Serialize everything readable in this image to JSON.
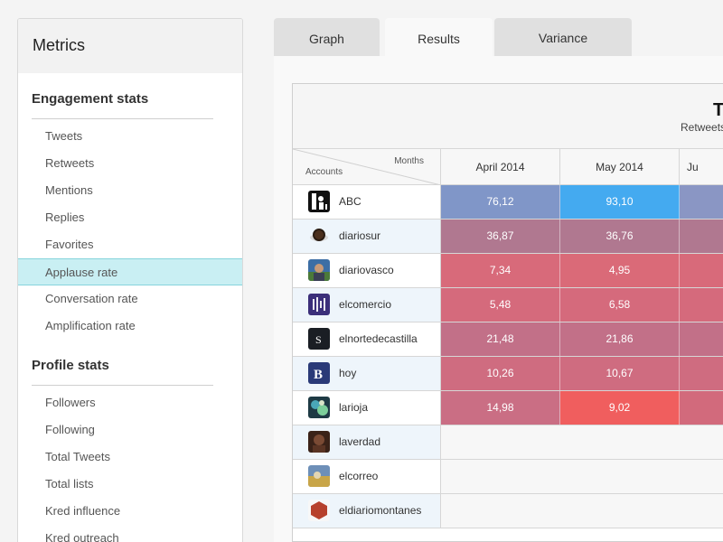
{
  "sidebar": {
    "title": "Metrics",
    "sections": [
      {
        "title": "Engagement stats",
        "items": [
          {
            "label": "Tweets",
            "active": false
          },
          {
            "label": "Retweets",
            "active": false
          },
          {
            "label": "Mentions",
            "active": false
          },
          {
            "label": "Replies",
            "active": false
          },
          {
            "label": "Favorites",
            "active": false
          },
          {
            "label": "Applause rate",
            "active": true
          },
          {
            "label": "Conversation rate",
            "active": false
          },
          {
            "label": "Amplification rate",
            "active": false
          }
        ]
      },
      {
        "title": "Profile stats",
        "items": [
          {
            "label": "Followers",
            "active": false
          },
          {
            "label": "Following",
            "active": false
          },
          {
            "label": "Total Tweets",
            "active": false
          },
          {
            "label": "Total lists",
            "active": false
          },
          {
            "label": "Kred influence",
            "active": false
          },
          {
            "label": "Kred outreach",
            "active": false
          }
        ]
      }
    ]
  },
  "tabs": [
    {
      "label": "Graph",
      "active": false
    },
    {
      "label": "Results",
      "active": true
    },
    {
      "label": "Variance",
      "active": false
    }
  ],
  "table": {
    "title": "T",
    "subtitle": "Retweets",
    "corner_top": "Months",
    "corner_bottom": "Accounts",
    "columns": [
      "April 2014",
      "May 2014",
      "Ju"
    ],
    "rows": [
      {
        "account": "ABC",
        "avatar": "abc-avatar-icon",
        "values": [
          "76,12",
          "93,10",
          ""
        ],
        "colors": [
          "#8096c8",
          "#44aaf0",
          "#8a96c4"
        ]
      },
      {
        "account": "diariosur",
        "avatar": "diariosur-avatar-icon",
        "values": [
          "36,87",
          "36,76",
          ""
        ],
        "colors": [
          "#b07890",
          "#b07890",
          "#b07890"
        ]
      },
      {
        "account": "diariovasco",
        "avatar": "diariovasco-avatar-icon",
        "values": [
          "7,34",
          "4,95",
          ""
        ],
        "colors": [
          "#d86a7a",
          "#da6a78",
          "#d86a7a"
        ]
      },
      {
        "account": "elcomercio",
        "avatar": "elcomercio-avatar-icon",
        "values": [
          "5,48",
          "6,58",
          ""
        ],
        "colors": [
          "#d56a7c",
          "#d56a7c",
          "#d56a7c"
        ]
      },
      {
        "account": "elnortedecastilla",
        "avatar": "elnortedecastilla-avatar-icon",
        "values": [
          "21,48",
          "21,86",
          ""
        ],
        "colors": [
          "#c27088",
          "#c27088",
          "#c27088"
        ]
      },
      {
        "account": "hoy",
        "avatar": "hoy-avatar-icon",
        "values": [
          "10,26",
          "10,67",
          ""
        ],
        "colors": [
          "#cf6c80",
          "#cf6c80",
          "#cf6c80"
        ]
      },
      {
        "account": "larioja",
        "avatar": "larioja-avatar-icon",
        "values": [
          "14,98",
          "9,02",
          ""
        ],
        "colors": [
          "#ca6e84",
          "#f05e5e",
          "#d26a7c"
        ]
      },
      {
        "account": "laverdad",
        "avatar": "laverdad-avatar-icon",
        "values": [],
        "colors": []
      },
      {
        "account": "elcorreo",
        "avatar": "elcorreo-avatar-icon",
        "values": [],
        "colors": []
      },
      {
        "account": "eldiariomontanes",
        "avatar": "eldiariomontanes-avatar-icon",
        "values": [],
        "colors": []
      }
    ]
  }
}
